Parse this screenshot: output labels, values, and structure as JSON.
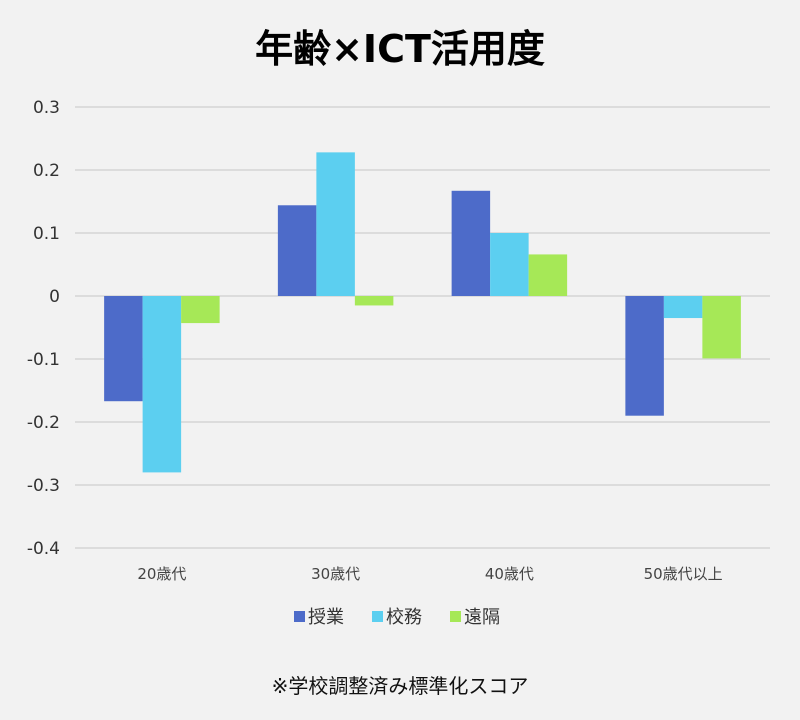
{
  "chart_data": {
    "type": "bar",
    "title": "年齢×ICT活用度",
    "categories": [
      "20歳代",
      "30歳代",
      "40歳代",
      "50歳代以上"
    ],
    "series": [
      {
        "name": "授業",
        "color": "#4d6bc9",
        "values": [
          -0.167,
          0.144,
          0.167,
          -0.19
        ]
      },
      {
        "name": "校務",
        "color": "#5ccff0",
        "values": [
          -0.28,
          0.228,
          0.1,
          -0.035
        ]
      },
      {
        "name": "遠隔",
        "color": "#a6e857",
        "values": [
          -0.043,
          -0.015,
          0.066,
          -0.099
        ]
      }
    ],
    "ylim": [
      -0.4,
      0.3
    ],
    "yticks": [
      "0.3",
      "0.2",
      "0.1",
      "0",
      "-0.1",
      "-0.2",
      "-0.3",
      "-0.4"
    ],
    "ytick_values": [
      0.3,
      0.2,
      0.1,
      0,
      -0.1,
      -0.2,
      -0.3,
      -0.4
    ],
    "grid": true,
    "legend": "bottom",
    "footnote": "※学校調整済み標準化スコア"
  }
}
